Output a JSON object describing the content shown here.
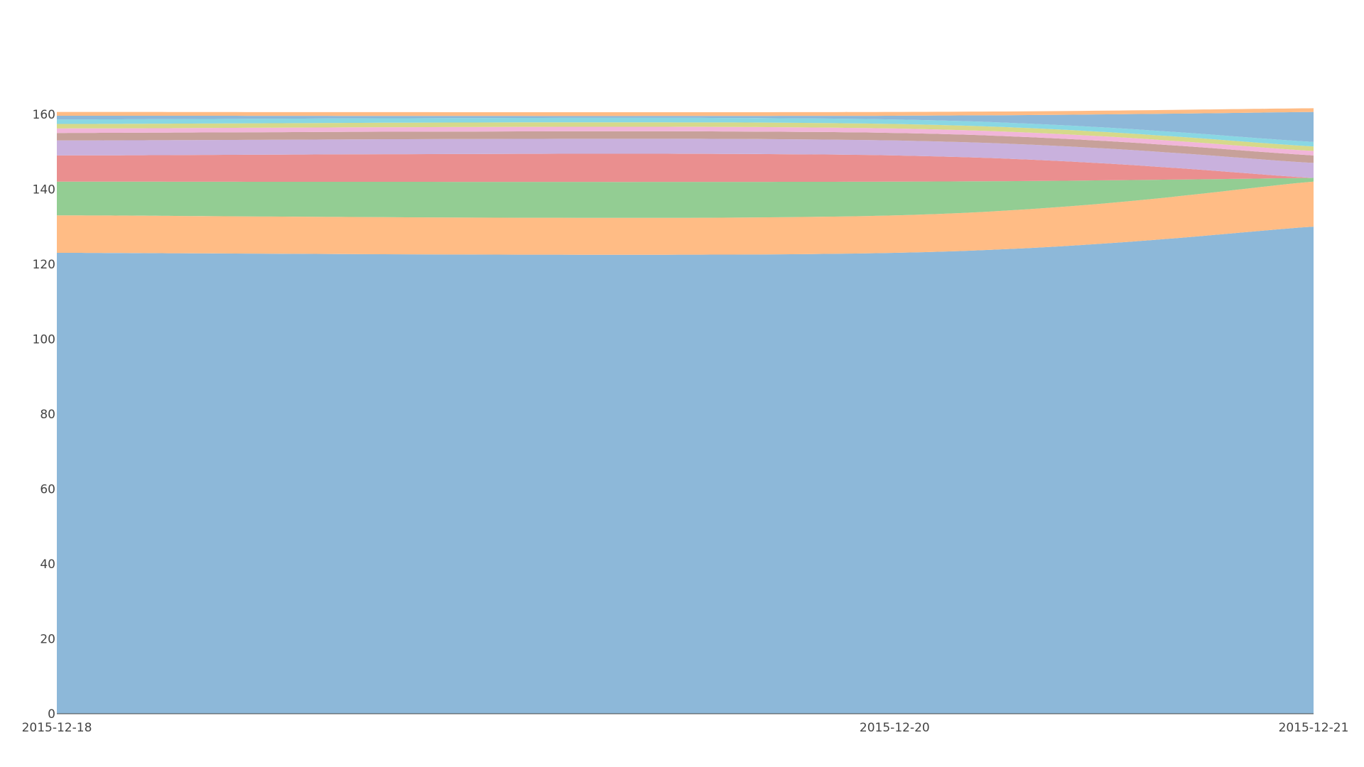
{
  "chart_data": {
    "type": "area",
    "stacked": true,
    "x": [
      "2015-12-18",
      "2015-12-20",
      "2015-12-21"
    ],
    "x_ticks": [
      "2015-12-18",
      "2015-12-20",
      "2015-12-21"
    ],
    "y_ticks": [
      "0",
      "20",
      "40",
      "60",
      "80",
      "100",
      "120",
      "140",
      "160"
    ],
    "ylim": [
      0,
      163
    ],
    "grid": false,
    "legend": "none",
    "title": "",
    "xlabel": "",
    "ylabel": "",
    "series": [
      {
        "values": [
          123,
          123,
          130
        ],
        "color": "#8db8d9"
      },
      {
        "values": [
          10,
          10,
          12
        ],
        "color": "#ffbc85"
      },
      {
        "values": [
          9,
          9,
          1
        ],
        "color": "#93cd93"
      },
      {
        "values": [
          7,
          7,
          0
        ],
        "color": "#ea8f8f"
      },
      {
        "values": [
          4,
          4,
          4
        ],
        "color": "#c9b1dd"
      },
      {
        "values": [
          2,
          2,
          2
        ],
        "color": "#c7a19a"
      },
      {
        "values": [
          1.2,
          1.2,
          1.2
        ],
        "color": "#f1b6d9"
      },
      {
        "values": [
          1.2,
          1.2,
          1.2
        ],
        "color": "#d6d98a"
      },
      {
        "values": [
          1.2,
          1.2,
          1.2
        ],
        "color": "#89d7e3"
      },
      {
        "values": [
          1,
          1,
          8
        ],
        "color": "#8db8d9"
      },
      {
        "values": [
          1,
          1,
          1
        ],
        "color": "#ffbc85"
      }
    ]
  }
}
